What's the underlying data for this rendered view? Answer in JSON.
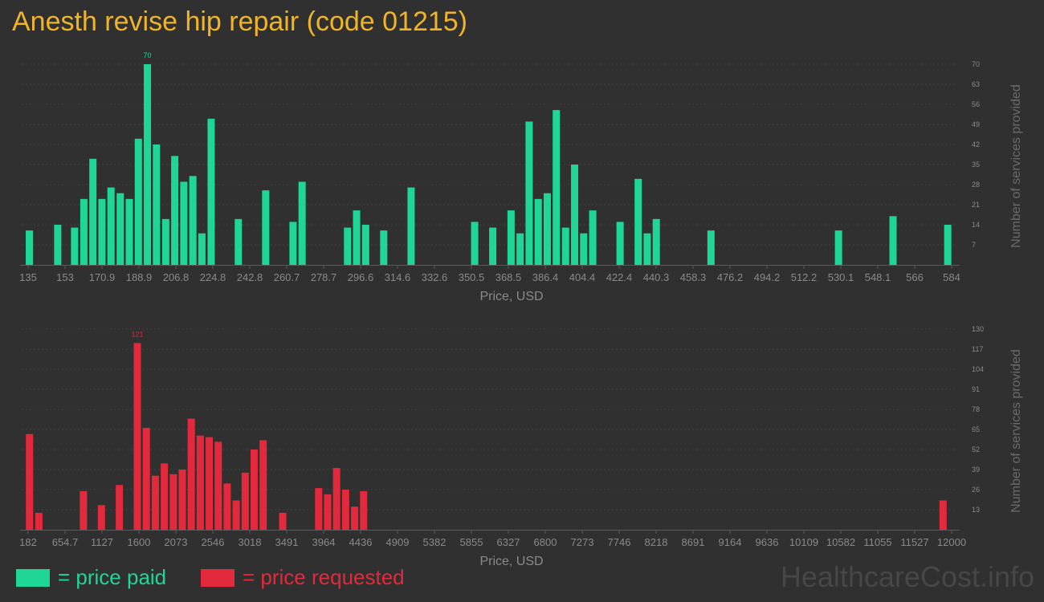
{
  "title": "Anesth revise hip repair (code 01215)",
  "colors": {
    "paid": "#1fd696",
    "requested": "#e3293c",
    "title": "#f0b429",
    "axis": "#8a8a8a"
  },
  "legend": {
    "paid": "= price paid",
    "requested": "= price requested"
  },
  "watermark": "HealthcareCost.info",
  "chart_data": [
    {
      "type": "bar",
      "series_name": "price paid",
      "xlabel": "Price, USD",
      "ylabel": "Number of services provided",
      "xlim": [
        135,
        584
      ],
      "ylim": [
        0,
        70
      ],
      "x_ticks": [
        "135",
        "153",
        "170.9",
        "188.9",
        "206.8",
        "224.8",
        "242.8",
        "260.7",
        "278.7",
        "296.6",
        "314.6",
        "332.6",
        "350.5",
        "368.5",
        "386.4",
        "404.4",
        "422.4",
        "440.3",
        "458.3",
        "476.2",
        "494.2",
        "512.2",
        "530.1",
        "548.1",
        "566",
        "584"
      ],
      "y_ticks": [
        7,
        14,
        21,
        28,
        35,
        42,
        49,
        56,
        63,
        70
      ],
      "max_label": "70",
      "bars": [
        {
          "x": 135.6,
          "v": 12
        },
        {
          "x": 149.4,
          "v": 14
        },
        {
          "x": 157.6,
          "v": 13
        },
        {
          "x": 162.1,
          "v": 23
        },
        {
          "x": 166.5,
          "v": 37
        },
        {
          "x": 170.9,
          "v": 23
        },
        {
          "x": 175.3,
          "v": 27
        },
        {
          "x": 179.8,
          "v": 25
        },
        {
          "x": 184.2,
          "v": 23
        },
        {
          "x": 188.6,
          "v": 44
        },
        {
          "x": 193.0,
          "v": 70
        },
        {
          "x": 197.4,
          "v": 42
        },
        {
          "x": 201.9,
          "v": 16
        },
        {
          "x": 206.3,
          "v": 38
        },
        {
          "x": 210.7,
          "v": 29
        },
        {
          "x": 215.1,
          "v": 31
        },
        {
          "x": 219.5,
          "v": 11
        },
        {
          "x": 224.0,
          "v": 51
        },
        {
          "x": 237.2,
          "v": 16
        },
        {
          "x": 250.5,
          "v": 26
        },
        {
          "x": 263.8,
          "v": 15
        },
        {
          "x": 268.2,
          "v": 29
        },
        {
          "x": 290.3,
          "v": 13
        },
        {
          "x": 294.7,
          "v": 19
        },
        {
          "x": 299.1,
          "v": 14
        },
        {
          "x": 307.9,
          "v": 12
        },
        {
          "x": 321.2,
          "v": 27
        },
        {
          "x": 352.1,
          "v": 15
        },
        {
          "x": 360.9,
          "v": 13
        },
        {
          "x": 369.8,
          "v": 19
        },
        {
          "x": 374.2,
          "v": 11
        },
        {
          "x": 378.6,
          "v": 50
        },
        {
          "x": 383.0,
          "v": 23
        },
        {
          "x": 387.4,
          "v": 25
        },
        {
          "x": 391.8,
          "v": 54
        },
        {
          "x": 396.3,
          "v": 13
        },
        {
          "x": 400.7,
          "v": 35
        },
        {
          "x": 405.1,
          "v": 11
        },
        {
          "x": 409.5,
          "v": 19
        },
        {
          "x": 422.8,
          "v": 15
        },
        {
          "x": 431.6,
          "v": 30
        },
        {
          "x": 436.0,
          "v": 11
        },
        {
          "x": 440.4,
          "v": 16
        },
        {
          "x": 467.0,
          "v": 12
        },
        {
          "x": 529.0,
          "v": 12
        },
        {
          "x": 555.5,
          "v": 17
        },
        {
          "x": 582.1,
          "v": 14
        }
      ]
    },
    {
      "type": "bar",
      "series_name": "price requested",
      "xlabel": "Price, USD",
      "ylabel": "Number of services provided",
      "xlim": [
        182,
        12000
      ],
      "ylim": [
        0,
        130
      ],
      "x_ticks": [
        "182",
        "654.7",
        "1127",
        "1600",
        "2073",
        "2546",
        "3018",
        "3491",
        "3964",
        "4436",
        "4909",
        "5382",
        "5855",
        "6327",
        "6800",
        "7273",
        "7746",
        "8218",
        "8691",
        "9164",
        "9636",
        "10109",
        "10582",
        "11055",
        "11527",
        "12000"
      ],
      "y_ticks": [
        13,
        26,
        39,
        52,
        65,
        78,
        91,
        104,
        117,
        130
      ],
      "max_label": "121",
      "bars": [
        {
          "x": 200,
          "v": 62
        },
        {
          "x": 320,
          "v": 11
        },
        {
          "x": 890,
          "v": 25
        },
        {
          "x": 1120,
          "v": 16
        },
        {
          "x": 1350,
          "v": 29
        },
        {
          "x": 1580,
          "v": 121
        },
        {
          "x": 1695,
          "v": 66
        },
        {
          "x": 1810,
          "v": 35
        },
        {
          "x": 1925,
          "v": 43
        },
        {
          "x": 2040,
          "v": 36
        },
        {
          "x": 2155,
          "v": 39
        },
        {
          "x": 2270,
          "v": 72
        },
        {
          "x": 2385,
          "v": 61
        },
        {
          "x": 2500,
          "v": 60
        },
        {
          "x": 2615,
          "v": 57
        },
        {
          "x": 2730,
          "v": 30
        },
        {
          "x": 2845,
          "v": 19
        },
        {
          "x": 2960,
          "v": 37
        },
        {
          "x": 3075,
          "v": 52
        },
        {
          "x": 3190,
          "v": 58
        },
        {
          "x": 3440,
          "v": 11
        },
        {
          "x": 3900,
          "v": 27
        },
        {
          "x": 4015,
          "v": 23
        },
        {
          "x": 4130,
          "v": 40
        },
        {
          "x": 4245,
          "v": 26
        },
        {
          "x": 4360,
          "v": 15
        },
        {
          "x": 4475,
          "v": 25
        },
        {
          "x": 11890,
          "v": 19
        }
      ]
    }
  ]
}
